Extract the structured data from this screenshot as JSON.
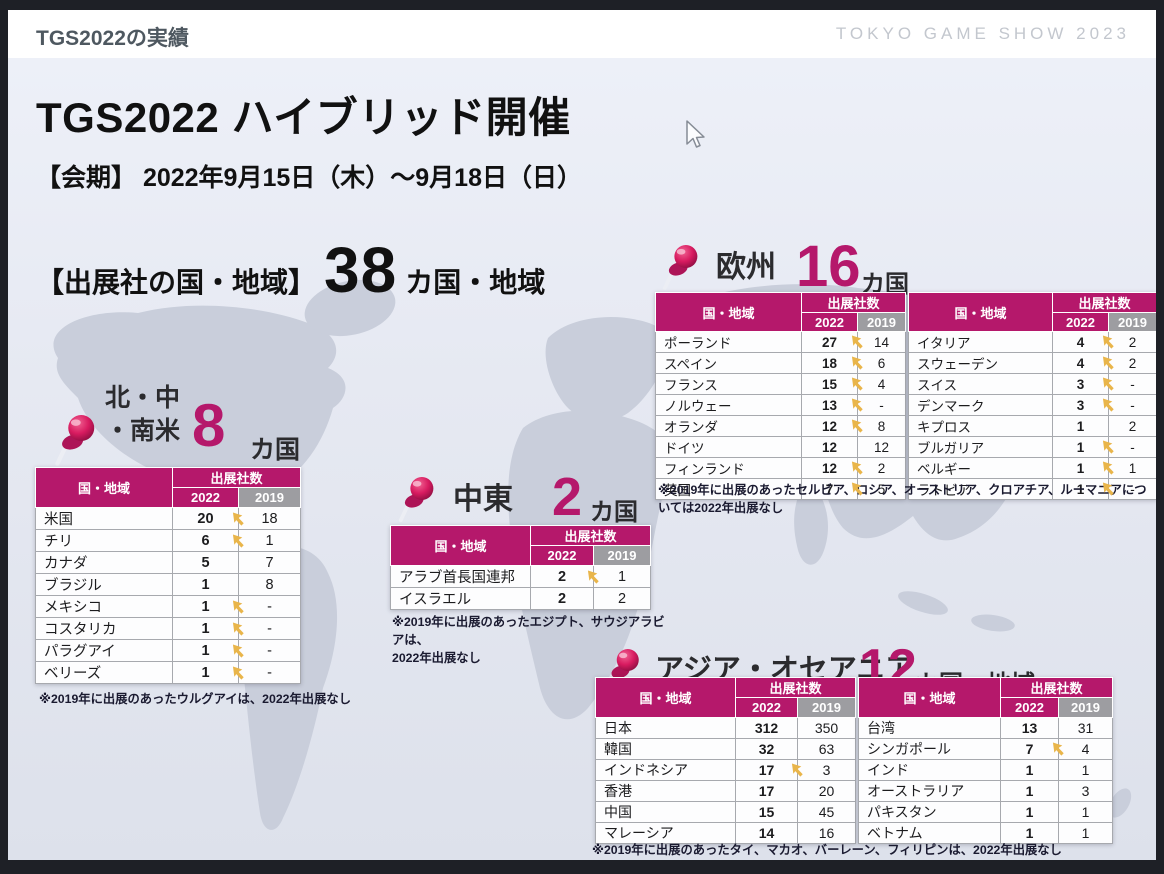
{
  "topbar": {
    "page_label": "TGS2022の実績",
    "brand": "TOKYO GAME SHOW 2023"
  },
  "slide": {
    "title": "TGS2022 ハイブリッド開催",
    "period": "【会期】 2022年9月15日（木）～9月18日（日）",
    "exhibitors_label": "【出展社の国・地域】",
    "exhibitors_count": "38",
    "exhibitors_unit": "カ国・地域"
  },
  "table_headers": {
    "country": "国・地域",
    "exhibitors": "出展社数",
    "y2022": "2022",
    "y2019": "2019"
  },
  "colors": {
    "accent": "#b5186b",
    "gray_header": "#9d9da1",
    "increase_arrow": "#e9b54a",
    "pin": "#d81b60"
  },
  "regions": {
    "americas": {
      "name": "北・中\n・南米",
      "count": "8",
      "unit": "カ国",
      "footnote": "※2019年に出展のあったウルグアイは、2022年出展なし",
      "rows": [
        {
          "country": "米国",
          "y2022": "20",
          "increase": true,
          "y2019": "18"
        },
        {
          "country": "チリ",
          "y2022": "6",
          "increase": true,
          "y2019": "1"
        },
        {
          "country": "カナダ",
          "y2022": "5",
          "increase": false,
          "y2019": "7"
        },
        {
          "country": "ブラジル",
          "y2022": "1",
          "increase": false,
          "y2019": "8"
        },
        {
          "country": "メキシコ",
          "y2022": "1",
          "increase": true,
          "y2019": "-"
        },
        {
          "country": "コスタリカ",
          "y2022": "1",
          "increase": true,
          "y2019": "-"
        },
        {
          "country": "パラグアイ",
          "y2022": "1",
          "increase": true,
          "y2019": "-"
        },
        {
          "country": "ベリーズ",
          "y2022": "1",
          "increase": true,
          "y2019": "-"
        }
      ]
    },
    "middle_east": {
      "name": "中東",
      "count": "2",
      "unit": "カ国",
      "footnote": "※2019年に出展のあったエジプト、サウジアラビアは、\n2022年出展なし",
      "rows": [
        {
          "country": "アラブ首長国連邦",
          "y2022": "2",
          "increase": true,
          "y2019": "1"
        },
        {
          "country": "イスラエル",
          "y2022": "2",
          "increase": false,
          "y2019": "2"
        }
      ]
    },
    "europe": {
      "name": "欧州",
      "count": "16",
      "unit": "カ国",
      "footnote": "※2019年に出展のあったセルビア、ロシア、オーストリア、クロアチア、ルーマニアについては2022年出展なし",
      "rows_left": [
        {
          "country": "ポーランド",
          "y2022": "27",
          "increase": true,
          "y2019": "14"
        },
        {
          "country": "スペイン",
          "y2022": "18",
          "increase": true,
          "y2019": "6"
        },
        {
          "country": "フランス",
          "y2022": "15",
          "increase": true,
          "y2019": "4"
        },
        {
          "country": "ノルウェー",
          "y2022": "13",
          "increase": true,
          "y2019": "-"
        },
        {
          "country": "オランダ",
          "y2022": "12",
          "increase": true,
          "y2019": "8"
        },
        {
          "country": "ドイツ",
          "y2022": "12",
          "increase": false,
          "y2019": "12"
        },
        {
          "country": "フィンランド",
          "y2022": "12",
          "increase": true,
          "y2019": "2"
        },
        {
          "country": "英国",
          "y2022": "7",
          "increase": true,
          "y2019": "5"
        }
      ],
      "rows_right": [
        {
          "country": "イタリア",
          "y2022": "4",
          "increase": true,
          "y2019": "2"
        },
        {
          "country": "スウェーデン",
          "y2022": "4",
          "increase": true,
          "y2019": "2"
        },
        {
          "country": "スイス",
          "y2022": "3",
          "increase": true,
          "y2019": "-"
        },
        {
          "country": "デンマーク",
          "y2022": "3",
          "increase": true,
          "y2019": "-"
        },
        {
          "country": "キプロス",
          "y2022": "1",
          "increase": false,
          "y2019": "2"
        },
        {
          "country": "ブルガリア",
          "y2022": "1",
          "increase": true,
          "y2019": "-"
        },
        {
          "country": "ベルギー",
          "y2022": "1",
          "increase": true,
          "y2019": "1"
        },
        {
          "country": "ラトビア",
          "y2022": "1",
          "increase": true,
          "y2019": "-"
        }
      ]
    },
    "asia": {
      "name": "アジア・オセアニア",
      "count": "12",
      "unit": "カ国・地域",
      "footnote": "※2019年に出展のあったタイ、マカオ、バーレーン、フィリピンは、2022年出展なし",
      "rows_left": [
        {
          "country": "日本",
          "y2022": "312",
          "increase": false,
          "y2019": "350"
        },
        {
          "country": "韓国",
          "y2022": "32",
          "increase": false,
          "y2019": "63"
        },
        {
          "country": "インドネシア",
          "y2022": "17",
          "increase": true,
          "y2019": "3"
        },
        {
          "country": "香港",
          "y2022": "17",
          "increase": false,
          "y2019": "20"
        },
        {
          "country": "中国",
          "y2022": "15",
          "increase": false,
          "y2019": "45"
        },
        {
          "country": "マレーシア",
          "y2022": "14",
          "increase": false,
          "y2019": "16"
        }
      ],
      "rows_right": [
        {
          "country": "台湾",
          "y2022": "13",
          "increase": false,
          "y2019": "31"
        },
        {
          "country": "シンガポール",
          "y2022": "7",
          "increase": true,
          "y2019": "4"
        },
        {
          "country": "インド",
          "y2022": "1",
          "increase": false,
          "y2019": "1"
        },
        {
          "country": "オーストラリア",
          "y2022": "1",
          "increase": false,
          "y2019": "3"
        },
        {
          "country": "パキスタン",
          "y2022": "1",
          "increase": false,
          "y2019": "1"
        },
        {
          "country": "ベトナム",
          "y2022": "1",
          "increase": false,
          "y2019": "1"
        }
      ]
    }
  }
}
